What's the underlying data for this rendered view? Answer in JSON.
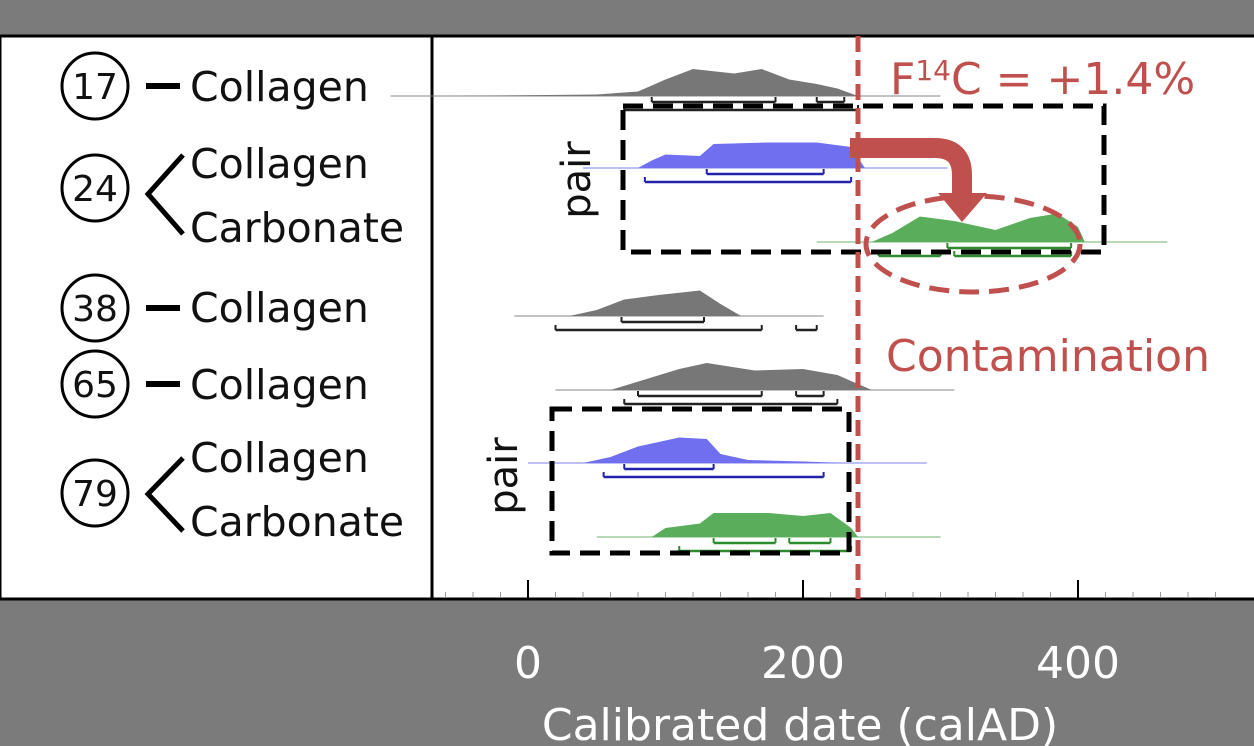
{
  "chart_data": {
    "type": "area",
    "xlabel": "Calibrated date (calAD)",
    "x_ticks": [
      0,
      200,
      400
    ],
    "xlim": [
      -75,
      500
    ],
    "rows": [
      {
        "sample": "17",
        "material": "Collagen",
        "group": "single",
        "color": "#777777",
        "density": [
          [
            -60,
            0
          ],
          [
            50,
            0.05
          ],
          [
            80,
            0.15
          ],
          [
            100,
            0.55
          ],
          [
            120,
            0.9
          ],
          [
            150,
            0.75
          ],
          [
            170,
            0.9
          ],
          [
            190,
            0.55
          ],
          [
            210,
            0.4
          ],
          [
            225,
            0.25
          ],
          [
            240,
            0
          ]
        ],
        "range_68": [
          [
            90,
            180
          ],
          [
            210,
            230
          ]
        ],
        "range_95": [
          [
            70,
            240
          ]
        ]
      },
      {
        "sample": "24",
        "material": "Collagen",
        "group": "pair-a",
        "color": "#6f6ff0",
        "density": [
          [
            80,
            0
          ],
          [
            90,
            0.25
          ],
          [
            100,
            0.45
          ],
          [
            125,
            0.4
          ],
          [
            135,
            0.8
          ],
          [
            175,
            0.85
          ],
          [
            210,
            0.85
          ],
          [
            235,
            0.7
          ],
          [
            245,
            0
          ]
        ],
        "range_68": [
          [
            130,
            215
          ]
        ],
        "range_95": [
          [
            85,
            235
          ]
        ]
      },
      {
        "sample": "24",
        "material": "Carbonate",
        "group": "pair-a",
        "color": "#5aad5a",
        "density": [
          [
            250,
            0
          ],
          [
            265,
            0.3
          ],
          [
            285,
            0.85
          ],
          [
            310,
            0.7
          ],
          [
            340,
            0.4
          ],
          [
            365,
            0.8
          ],
          [
            385,
            0.95
          ],
          [
            400,
            0.5
          ],
          [
            405,
            0
          ]
        ],
        "range_68": [
          [
            305,
            395
          ]
        ],
        "range_95": [
          [
            255,
            300
          ],
          [
            310,
            395
          ]
        ]
      },
      {
        "sample": "38",
        "material": "Collagen",
        "group": "single",
        "color": "#777777",
        "density": [
          [
            30,
            0
          ],
          [
            50,
            0.2
          ],
          [
            70,
            0.55
          ],
          [
            95,
            0.7
          ],
          [
            125,
            0.85
          ],
          [
            140,
            0.4
          ],
          [
            155,
            0
          ]
        ],
        "range_68": [
          [
            68,
            128
          ]
        ],
        "range_95": [
          [
            20,
            170
          ],
          [
            195,
            210
          ]
        ]
      },
      {
        "sample": "65",
        "material": "Collagen",
        "group": "single",
        "color": "#777777",
        "density": [
          [
            60,
            0
          ],
          [
            85,
            0.35
          ],
          [
            110,
            0.7
          ],
          [
            130,
            0.9
          ],
          [
            165,
            0.65
          ],
          [
            200,
            0.7
          ],
          [
            225,
            0.5
          ],
          [
            240,
            0.2
          ],
          [
            250,
            0
          ]
        ],
        "range_68": [
          [
            80,
            170
          ],
          [
            195,
            215
          ]
        ],
        "range_95": [
          [
            70,
            225
          ]
        ]
      },
      {
        "sample": "79",
        "material": "Collagen",
        "group": "pair-b",
        "color": "#6f6ff0",
        "density": [
          [
            40,
            0
          ],
          [
            60,
            0.2
          ],
          [
            80,
            0.55
          ],
          [
            110,
            0.85
          ],
          [
            130,
            0.8
          ],
          [
            140,
            0.3
          ],
          [
            160,
            0.1
          ],
          [
            200,
            0.05
          ],
          [
            230,
            0
          ]
        ],
        "range_68": [
          [
            70,
            135
          ]
        ],
        "range_95": [
          [
            55,
            215
          ]
        ]
      },
      {
        "sample": "79",
        "material": "Carbonate",
        "group": "pair-b",
        "color": "#5aad5a",
        "density": [
          [
            90,
            0
          ],
          [
            100,
            0.3
          ],
          [
            125,
            0.45
          ],
          [
            135,
            0.8
          ],
          [
            175,
            0.8
          ],
          [
            200,
            0.7
          ],
          [
            220,
            0.8
          ],
          [
            235,
            0.3
          ],
          [
            240,
            0
          ]
        ],
        "range_68": [
          [
            135,
            180
          ],
          [
            190,
            220
          ]
        ],
        "range_95": [
          [
            110,
            235
          ]
        ]
      }
    ],
    "pair_label": "pair",
    "threshold": {
      "x": 240,
      "color": "#c0504d"
    },
    "annotations": {
      "fraction_prefix": "F",
      "fraction_sup": "14",
      "fraction_suffix": "C = +1.4%",
      "contamination": "Contamination"
    },
    "colors": {
      "collagen_gray": "#777777",
      "collagen_blue": "#6f6ff0",
      "carbonate_green": "#5aad5a",
      "accent_red": "#c0504d",
      "background": "#7b7b7b"
    }
  }
}
